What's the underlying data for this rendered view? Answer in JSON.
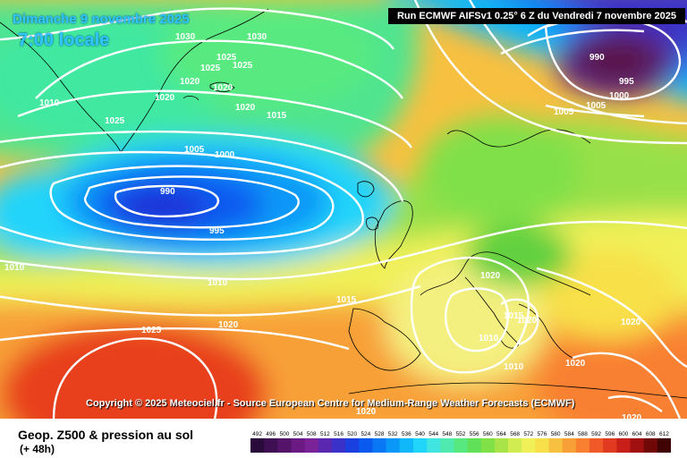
{
  "header": {
    "date_line": "Dimanche 9 novembre 2025",
    "time_line": "7:00 locale",
    "run_info": "Run ECMWF AIFSv1 0.25° 6 Z du Vendredi 7 novembre 2025"
  },
  "copyright": "Copyright © 2025 Meteociel.fr - Source European Centre for Medium-Range Weather Forecasts (ECMWF)",
  "footer": {
    "title": "Geop. Z500 & pression au sol",
    "subtitle": "(+ 48h)"
  },
  "legend": {
    "labels": [
      "492",
      "496",
      "500",
      "504",
      "508",
      "512",
      "516",
      "520",
      "524",
      "528",
      "532",
      "536",
      "540",
      "544",
      "548",
      "552",
      "556",
      "560",
      "564",
      "568",
      "572",
      "576",
      "580",
      "584",
      "588",
      "592",
      "596",
      "600",
      "604",
      "608",
      "612"
    ],
    "colors": [
      "#2a0a3a",
      "#3e0f52",
      "#54146a",
      "#6a1a82",
      "#7a2298",
      "#5a28b0",
      "#3a32c8",
      "#1a40e0",
      "#0a5af0",
      "#0a78f5",
      "#0a98f8",
      "#10b8fa",
      "#20d4fa",
      "#40e4e0",
      "#50eab0",
      "#58e880",
      "#60e058",
      "#80e048",
      "#a8e448",
      "#d0ec50",
      "#f0f058",
      "#f8e04a",
      "#f8c040",
      "#f8a038",
      "#f88030",
      "#f05a28",
      "#e03a20",
      "#c82018",
      "#a01010",
      "#700808",
      "#400404"
    ]
  },
  "isobars": [
    {
      "label": "1030",
      "v": 1030
    },
    {
      "label": "1030",
      "v": 1030
    },
    {
      "label": "1025",
      "v": 1025
    },
    {
      "label": "1025",
      "v": 1025
    },
    {
      "label": "1025",
      "v": 1025
    },
    {
      "label": "1020",
      "v": 1020
    },
    {
      "label": "1020",
      "v": 1020
    },
    {
      "label": "1020",
      "v": 1020
    },
    {
      "label": "1010",
      "v": 1010
    },
    {
      "label": "1025",
      "v": 1025
    },
    {
      "label": "1020",
      "v": 1020
    },
    {
      "label": "1015",
      "v": 1015
    },
    {
      "label": "1005",
      "v": 1005
    },
    {
      "label": "1000",
      "v": 1000
    },
    {
      "label": "990",
      "v": 990
    },
    {
      "label": "995",
      "v": 995
    },
    {
      "label": "1005",
      "v": 1005
    },
    {
      "label": "1010",
      "v": 1010
    },
    {
      "label": "1015",
      "v": 1015
    },
    {
      "label": "1020",
      "v": 1020
    },
    {
      "label": "1025",
      "v": 1025
    },
    {
      "label": "1020",
      "v": 1020
    },
    {
      "label": "1015",
      "v": 1015
    },
    {
      "label": "1010",
      "v": 1010
    },
    {
      "label": "1010",
      "v": 1010
    },
    {
      "label": "1020",
      "v": 1020
    },
    {
      "label": "1020",
      "v": 1020
    },
    {
      "label": "1020",
      "v": 1020
    },
    {
      "label": "1020",
      "v": 1020
    },
    {
      "label": "1020",
      "v": 1020
    },
    {
      "label": "990",
      "v": 990
    },
    {
      "label": "995",
      "v": 995
    },
    {
      "label": "1000",
      "v": 1000
    },
    {
      "label": "1005",
      "v": 1005
    },
    {
      "label": "1010",
      "v": 1010
    }
  ]
}
